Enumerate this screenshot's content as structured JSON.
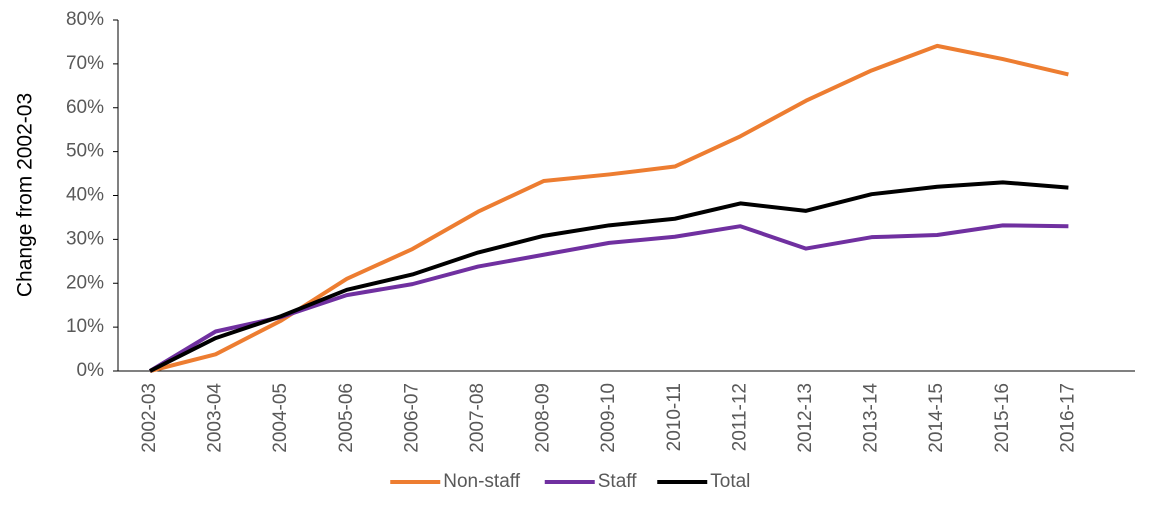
{
  "chart_data": {
    "type": "line",
    "y_label": "Change from 2002-03",
    "categories": [
      "2002-03",
      "2003-04",
      "2004-05",
      "2005-06",
      "2006-07",
      "2007-08",
      "2008-09",
      "2009-10",
      "2010-11",
      "2011-12",
      "2012-13",
      "2013-14",
      "2014-15",
      "2015-16",
      "2016-17"
    ],
    "series": [
      {
        "name": "Non-staff",
        "color": "#ed7d31",
        "values": [
          0,
          3.8,
          11.5,
          21,
          27.8,
          36.3,
          43.3,
          44.8,
          46.6,
          53.5,
          61.6,
          68.5,
          74.1,
          71.1,
          67.6
        ]
      },
      {
        "name": "Staff",
        "color": "#7030a0",
        "values": [
          0,
          9,
          12.3,
          17.3,
          19.8,
          23.8,
          26.5,
          29.2,
          30.6,
          33,
          27.9,
          30.5,
          31,
          33.2,
          33
        ]
      },
      {
        "name": "Total",
        "color": "#000000",
        "values": [
          0,
          7.5,
          12.5,
          18.5,
          22,
          27,
          30.8,
          33.2,
          34.7,
          38.2,
          36.5,
          40.3,
          42,
          43,
          41.8
        ]
      }
    ],
    "ylim": [
      0,
      80
    ],
    "yticks": [
      {
        "value": 0,
        "label": "0%"
      },
      {
        "value": 10,
        "label": "10%"
      },
      {
        "value": 20,
        "label": "20%"
      },
      {
        "value": 30,
        "label": "30%"
      },
      {
        "value": 40,
        "label": "40%"
      },
      {
        "value": 50,
        "label": "50%"
      },
      {
        "value": 60,
        "label": "60%"
      },
      {
        "value": 70,
        "label": "70%"
      },
      {
        "value": 80,
        "label": "80%"
      }
    ],
    "grid": false,
    "legend": "bottom"
  }
}
